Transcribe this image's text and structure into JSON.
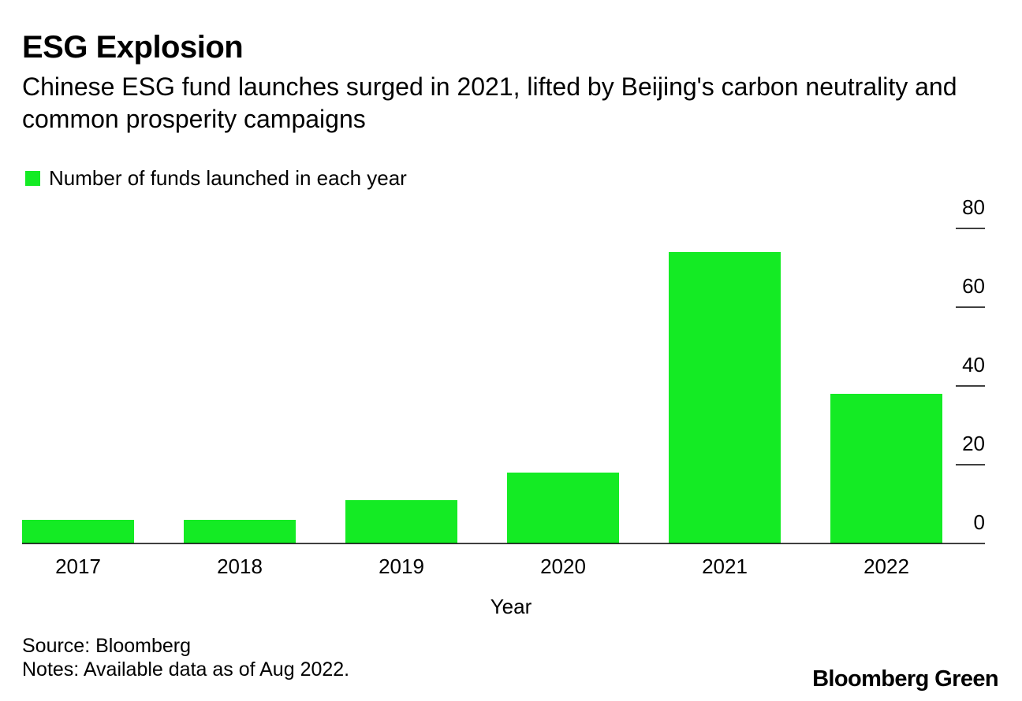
{
  "title": "ESG Explosion",
  "subtitle": "Chinese ESG fund launches surged in 2021, lifted by Beijing's carbon neutrality and common prosperity campaigns",
  "source": "Source: Bloomberg",
  "notes": "Notes: Available data as of Aug 2022.",
  "brand": "Bloomberg Green",
  "colors": {
    "bar": "#14eb24",
    "axis": "#000000"
  },
  "chart_data": {
    "type": "bar",
    "title": "ESG Explosion",
    "xlabel": "Year",
    "ylabel": "",
    "categories": [
      "2017",
      "2018",
      "2019",
      "2020",
      "2021",
      "2022"
    ],
    "series": [
      {
        "name": "Number of funds launched in each year",
        "values": [
          6,
          6,
          11,
          18,
          74,
          38
        ]
      }
    ],
    "ylim": [
      0,
      80
    ],
    "yticks": [
      0,
      20,
      40,
      60,
      80
    ],
    "y_axis_side": "right",
    "grid": false,
    "legend_position": "top-left"
  }
}
